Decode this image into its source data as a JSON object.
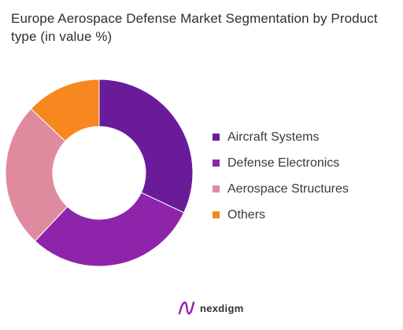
{
  "chart_data": {
    "type": "pie",
    "title": "Europe Aerospace Defense Market Segmentation by Product type (in value %)",
    "categories": [
      "Aircraft Systems",
      "Defense Electronics",
      "Aerospace Structures",
      "Others"
    ],
    "values": [
      32,
      30,
      25,
      13
    ],
    "colors": [
      "#6a1b9a",
      "#8e24aa",
      "#e08aa0",
      "#f7871f"
    ],
    "donut": true,
    "legend_position": "right"
  },
  "brand": {
    "name": "nexdigm",
    "icon": "nexdigm-logo-icon"
  }
}
